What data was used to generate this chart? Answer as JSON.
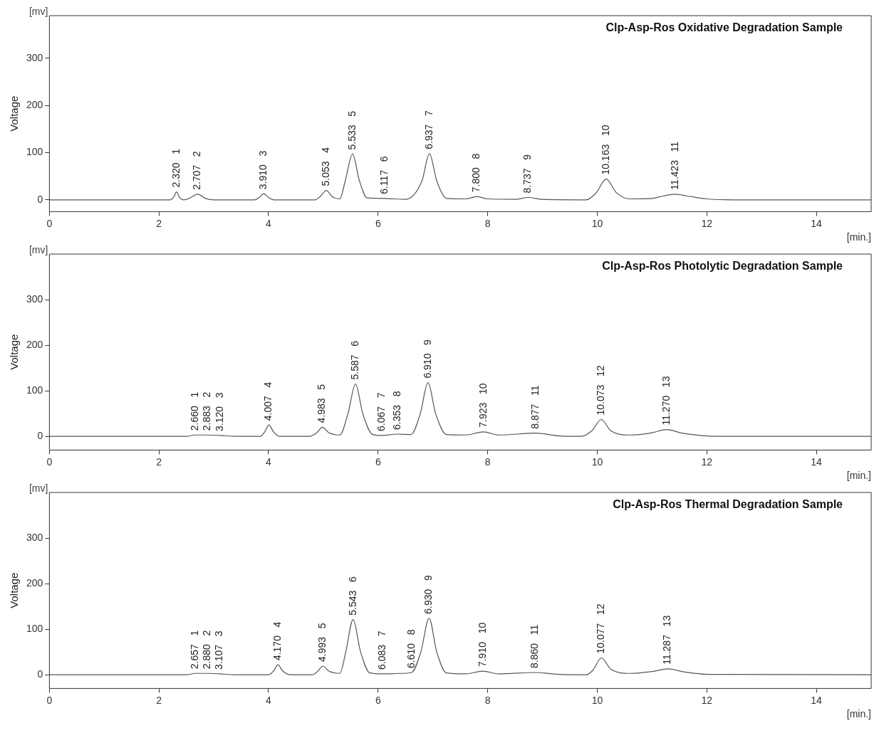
{
  "chart_data": [
    {
      "type": "line",
      "title": "Clp-Asp-Ros Oxidative Degradation Sample",
      "xlabel": "[min.]",
      "ylabel": "Voltage",
      "xlim": [
        0,
        15
      ],
      "xticks": [
        0,
        2,
        4,
        6,
        8,
        10,
        12,
        14
      ],
      "ylim": [
        -25,
        390
      ],
      "yticks": [
        0,
        100,
        200,
        300
      ],
      "grid": false,
      "legend": false,
      "marker": "none",
      "series": [
        {
          "color": "#555555",
          "x": [
            0,
            2.2,
            2.27,
            2.32,
            2.37,
            2.45,
            2.55,
            2.707,
            2.85,
            3.0,
            3.75,
            3.83,
            3.91,
            4.0,
            4.1,
            4.85,
            4.95,
            5.053,
            5.17,
            5.3,
            5.4,
            5.533,
            5.66,
            5.8,
            6.117,
            6.5,
            6.8,
            6.937,
            7.07,
            7.25,
            7.6,
            7.8,
            8.0,
            8.5,
            8.737,
            9.0,
            9.8,
            9.98,
            10.163,
            10.35,
            10.6,
            11.0,
            11.2,
            11.423,
            11.65,
            12.0,
            12.5,
            15
          ],
          "values": [
            0,
            0,
            6,
            17,
            6,
            0,
            3,
            12,
            3,
            0,
            0,
            5,
            13,
            5,
            0,
            0,
            8,
            20,
            6,
            2,
            40,
            97,
            40,
            4,
            3,
            1,
            40,
            98,
            40,
            3,
            2,
            7,
            2,
            1,
            5,
            1,
            0,
            15,
            44,
            15,
            2,
            3,
            8,
            12,
            8,
            2,
            0,
            0
          ]
        }
      ],
      "annotations": [
        "[mv]",
        {
          "text": "2.320   1",
          "x": 2.32,
          "y": 17
        },
        {
          "text": "2.707   2",
          "x": 2.707,
          "y": 12
        },
        {
          "text": "3.910   3",
          "x": 3.91,
          "y": 13
        },
        {
          "text": "5.053   4",
          "x": 5.053,
          "y": 20
        },
        {
          "text": "5.533   5",
          "x": 5.533,
          "y": 97
        },
        {
          "text": "6.117   6",
          "x": 6.117,
          "y": 3
        },
        {
          "text": "6.937   7",
          "x": 6.937,
          "y": 98
        },
        {
          "text": "7.800   8",
          "x": 7.8,
          "y": 7
        },
        {
          "text": "8.737   9",
          "x": 8.737,
          "y": 5
        },
        {
          "text": "10.163   10",
          "x": 10.163,
          "y": 44
        },
        {
          "text": "11.423   11",
          "x": 11.423,
          "y": 12
        }
      ]
    },
    {
      "type": "line",
      "title": "Clp-Asp-Ros Photolytic Degradation Sample",
      "xlabel": "[min.]",
      "ylabel": "Voltage",
      "xlim": [
        0,
        15
      ],
      "xticks": [
        0,
        2,
        4,
        6,
        8,
        10,
        12,
        14
      ],
      "ylim": [
        -30,
        400
      ],
      "yticks": [
        0,
        100,
        200,
        300
      ],
      "grid": false,
      "legend": false,
      "marker": "none",
      "series": [
        {
          "color": "#555555",
          "x": [
            0,
            2.5,
            2.66,
            2.883,
            3.12,
            3.4,
            3.85,
            3.93,
            4.007,
            4.09,
            4.2,
            4.75,
            4.88,
            4.983,
            5.1,
            5.3,
            5.45,
            5.587,
            5.72,
            5.9,
            6.067,
            6.353,
            6.6,
            6.77,
            6.91,
            7.05,
            7.25,
            7.6,
            7.923,
            8.2,
            8.877,
            9.3,
            9.7,
            9.9,
            10.073,
            10.25,
            10.6,
            11.0,
            11.27,
            11.55,
            12.0,
            12.4,
            15
          ],
          "values": [
            0,
            0,
            3,
            3,
            2,
            0,
            0,
            10,
            25,
            10,
            0,
            0,
            8,
            20,
            8,
            3,
            50,
            115,
            50,
            4,
            2,
            5,
            4,
            50,
            118,
            50,
            4,
            3,
            10,
            3,
            7,
            1,
            0,
            12,
            37,
            12,
            3,
            8,
            15,
            7,
            1,
            0,
            0
          ]
        }
      ],
      "annotations": [
        "[mv]",
        {
          "text": "2.660   1",
          "x": 2.66,
          "y": 3
        },
        {
          "text": "2.883   2",
          "x": 2.883,
          "y": 3
        },
        {
          "text": "3.120   3",
          "x": 3.12,
          "y": 2
        },
        {
          "text": "4.007   4",
          "x": 4.007,
          "y": 25
        },
        {
          "text": "4.983   5",
          "x": 4.983,
          "y": 20
        },
        {
          "text": "5.587   6",
          "x": 5.587,
          "y": 115
        },
        {
          "text": "6.067   7",
          "x": 6.067,
          "y": 2
        },
        {
          "text": "6.353   8",
          "x": 6.353,
          "y": 5
        },
        {
          "text": "6.910   9",
          "x": 6.91,
          "y": 118
        },
        {
          "text": "7.923   10",
          "x": 7.923,
          "y": 10
        },
        {
          "text": "8.877   11",
          "x": 8.877,
          "y": 7
        },
        {
          "text": "10.073   12",
          "x": 10.073,
          "y": 37
        },
        {
          "text": "11.270   13",
          "x": 11.27,
          "y": 15
        }
      ]
    },
    {
      "type": "line",
      "title": "Clp-Asp-Ros Thermal Degradation Sample",
      "xlabel": "[min.]",
      "ylabel": "Voltage",
      "xlim": [
        0,
        15
      ],
      "xticks": [
        0,
        2,
        4,
        6,
        8,
        10,
        12,
        14
      ],
      "ylim": [
        -30,
        400
      ],
      "yticks": [
        0,
        100,
        200,
        300
      ],
      "grid": false,
      "legend": false,
      "marker": "none",
      "series": [
        {
          "color": "#555555",
          "x": [
            0,
            2.5,
            2.657,
            2.88,
            3.107,
            3.4,
            4.0,
            4.09,
            4.17,
            4.26,
            4.4,
            4.8,
            4.9,
            4.993,
            5.1,
            5.3,
            5.41,
            5.543,
            5.68,
            5.85,
            6.083,
            6.4,
            6.61,
            6.78,
            6.93,
            7.07,
            7.25,
            7.6,
            7.91,
            8.2,
            8.86,
            9.3,
            9.8,
            9.92,
            10.077,
            10.25,
            10.6,
            11.0,
            11.287,
            11.6,
            12.0,
            15
          ],
          "values": [
            0,
            0,
            3,
            3,
            2,
            0,
            0,
            8,
            22,
            8,
            0,
            0,
            8,
            19,
            8,
            3,
            50,
            121,
            50,
            4,
            2,
            3,
            5,
            50,
            124,
            50,
            4,
            2,
            8,
            2,
            5,
            1,
            0,
            10,
            37,
            12,
            3,
            7,
            13,
            6,
            1,
            0
          ]
        }
      ],
      "annotations": [
        "[mv]",
        {
          "text": "2.657   1",
          "x": 2.657,
          "y": 3
        },
        {
          "text": "2.880   2",
          "x": 2.88,
          "y": 3
        },
        {
          "text": "3.107   3",
          "x": 3.107,
          "y": 2
        },
        {
          "text": "4.170   4",
          "x": 4.17,
          "y": 22
        },
        {
          "text": "4.993   5",
          "x": 4.993,
          "y": 19
        },
        {
          "text": "5.543   6",
          "x": 5.543,
          "y": 121
        },
        {
          "text": "6.083   7",
          "x": 6.083,
          "y": 2
        },
        {
          "text": "6.610   8",
          "x": 6.61,
          "y": 5
        },
        {
          "text": "6.930   9",
          "x": 6.93,
          "y": 124
        },
        {
          "text": "7.910   10",
          "x": 7.91,
          "y": 8
        },
        {
          "text": "8.860   11",
          "x": 8.86,
          "y": 5
        },
        {
          "text": "10.077   12",
          "x": 10.077,
          "y": 37
        },
        {
          "text": "11.287   13",
          "x": 11.287,
          "y": 13
        }
      ]
    }
  ]
}
